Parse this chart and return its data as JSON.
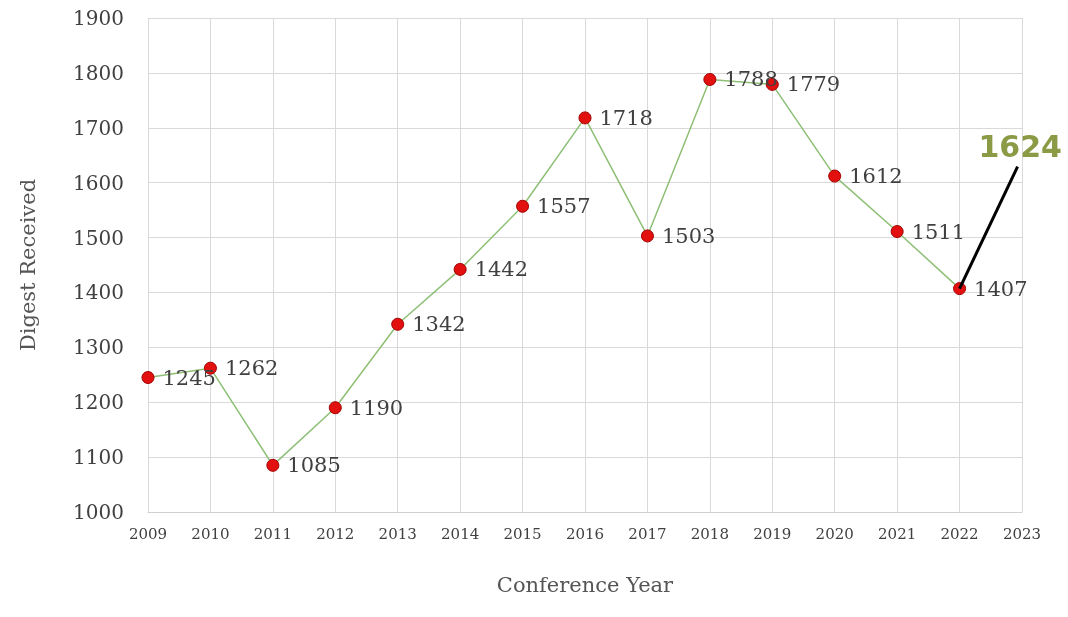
{
  "chart_data": {
    "type": "line",
    "xlabel": "Conference Year",
    "ylabel": "Digest Received",
    "categories": [
      "2009",
      "2010",
      "2011",
      "2012",
      "2013",
      "2014",
      "2015",
      "2016",
      "2017",
      "2018",
      "2019",
      "2020",
      "2021",
      "2022",
      "2023"
    ],
    "series": [
      {
        "color": "#8dbf75",
        "values": [
          1245,
          1262,
          1085,
          1190,
          1342,
          1442,
          1557,
          1718,
          1503,
          1788,
          1779,
          1612,
          1511,
          1407,
          null
        ]
      }
    ],
    "ylim": [
      1000,
      1900
    ],
    "yticks": [
      1000,
      1100,
      1200,
      1300,
      1400,
      1500,
      1600,
      1700,
      1800,
      1900
    ],
    "grid": true,
    "marker": "circle",
    "line_style": "solid",
    "data_labels": true,
    "annotations": [
      {
        "text": "1624",
        "x": "2022",
        "y": 1407
      }
    ]
  }
}
